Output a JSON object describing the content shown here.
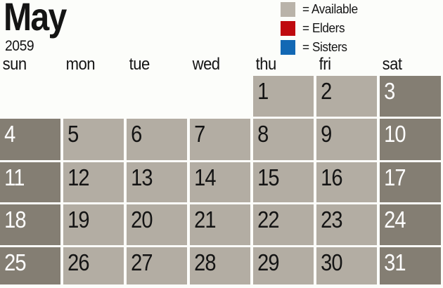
{
  "header": {
    "month": "May",
    "year": "2059"
  },
  "legend": [
    {
      "name": "available",
      "label": "= Available",
      "color": "#b9b3a9"
    },
    {
      "name": "elders",
      "label": "= Elders",
      "color": "#bf0a0f"
    },
    {
      "name": "sisters",
      "label": "= Sisters",
      "color": "#1268b4"
    }
  ],
  "weekday_headers": [
    "sun",
    "mon",
    "tue",
    "wed",
    "thu",
    "fri",
    "sat"
  ],
  "calendar": {
    "weeks": [
      [
        "",
        "",
        "",
        "",
        "1",
        "2",
        "3"
      ],
      [
        "4",
        "5",
        "6",
        "7",
        "8",
        "9",
        "10"
      ],
      [
        "11",
        "12",
        "13",
        "14",
        "15",
        "16",
        "17"
      ],
      [
        "18",
        "19",
        "20",
        "21",
        "22",
        "23",
        "24"
      ],
      [
        "25",
        "26",
        "27",
        "28",
        "29",
        "30",
        "31"
      ]
    ],
    "all_days_status": "Available"
  },
  "colors": {
    "weekday_cell": "#b3ada3",
    "weekend_cell": "#847e73",
    "weekday_text": "#141414",
    "weekend_text": "#ffffff",
    "background": "#fcfdfa"
  }
}
